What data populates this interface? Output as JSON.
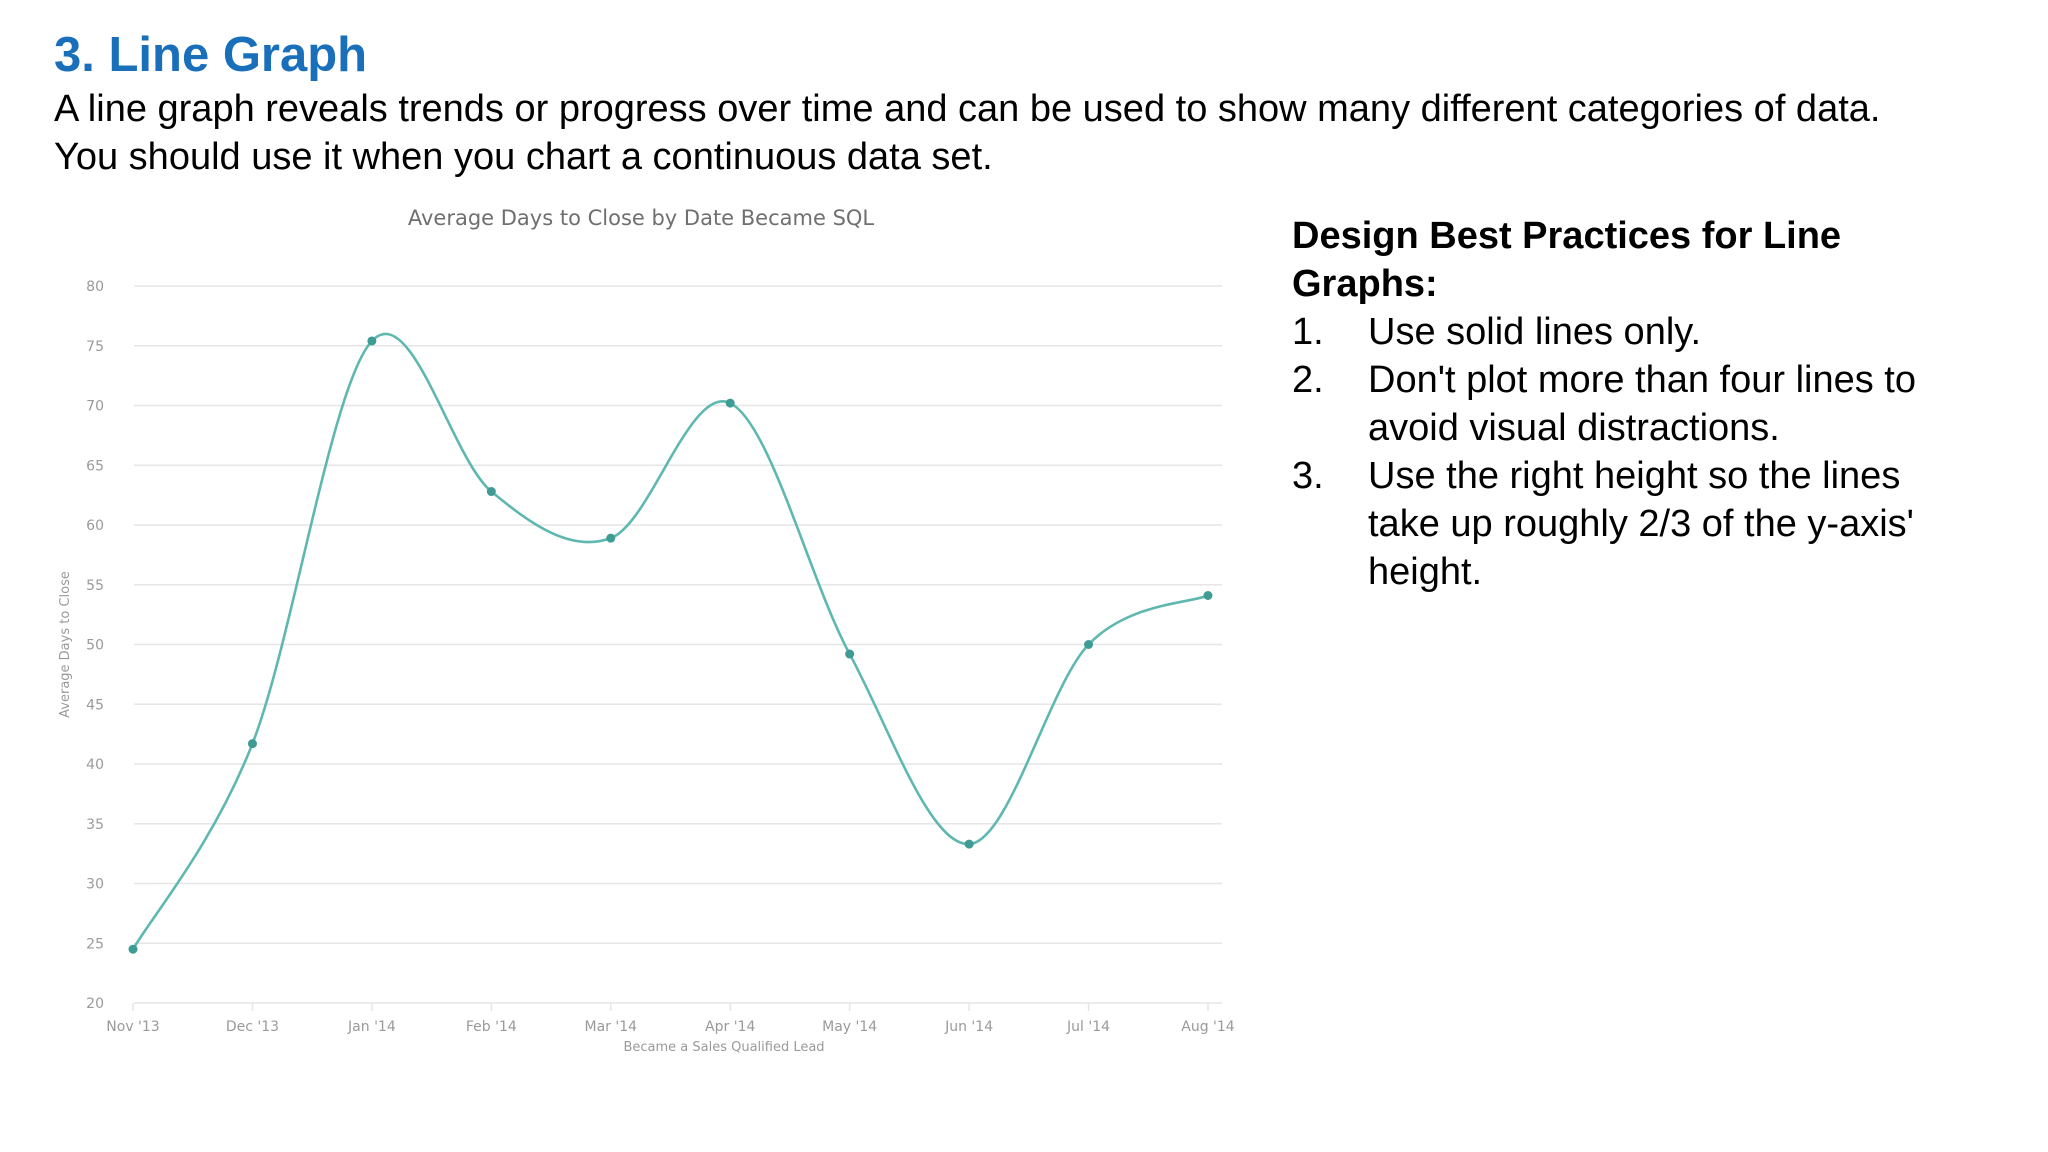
{
  "slide": {
    "title": "3. Line Graph",
    "intro_lines": [
      "A line graph reveals trends or progress over time and can be used to show many different categories of data.",
      "You should use it when you chart a continuous data set."
    ]
  },
  "chart_data": {
    "type": "line",
    "title": "Average Days to Close by Date Became SQL",
    "xlabel": "Became a Sales Qualified Lead",
    "ylabel": "Average Days to Close",
    "categories": [
      "Nov '13",
      "Dec '13",
      "Jan '14",
      "Feb '14",
      "Mar '14",
      "Apr '14",
      "May '14",
      "Jun '14",
      "Jul '14",
      "Aug '14"
    ],
    "series": [
      {
        "values": [
          24.5,
          41.7,
          75.4,
          62.8,
          58.9,
          70.2,
          49.2,
          33.3,
          50.0,
          54.1
        ]
      }
    ],
    "ylim": [
      20,
      80
    ],
    "yticks": [
      "80",
      "75",
      "70",
      "65",
      "60",
      "55",
      "50",
      "45",
      "40",
      "35",
      "30",
      "25",
      "20"
    ],
    "grid": true,
    "smooth": true,
    "legend": "none",
    "line_color": "#5fb8b0",
    "marker_color": "#3f9c94",
    "grid_color": "#e6e6e6",
    "text_color": "#9a9a9a"
  },
  "panel": {
    "heading_lines": [
      "Design Best Practices for Line",
      "Graphs:"
    ],
    "items": [
      {
        "num": "1.",
        "lines": [
          "Use solid lines only."
        ]
      },
      {
        "num": "2.",
        "lines": [
          "Don't plot more than four lines to",
          "avoid visual distractions."
        ]
      },
      {
        "num": "3.",
        "lines": [
          "Use the right height so the lines",
          "take up roughly 2/3 of the y-axis'",
          "height."
        ]
      }
    ]
  }
}
